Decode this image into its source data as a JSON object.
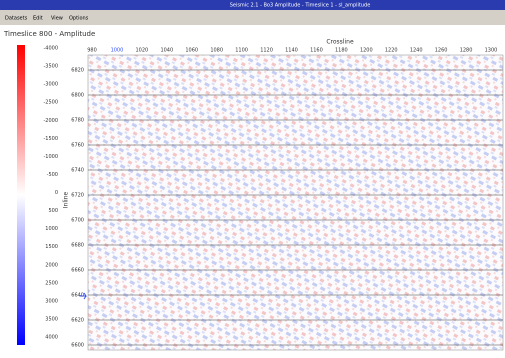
{
  "window": {
    "title": "Seismic 2.1 - Bo3 Amplitude - Timeslice 1 - sl_amplitude"
  },
  "menu": [
    "Datasets",
    "Edit",
    "View",
    "Options"
  ],
  "panel": {
    "title": "Timeslice 800 - Amplitude",
    "colorbar_labels": [
      "-4000",
      "-3500",
      "-3000",
      "-2500",
      "-2000",
      "-1500",
      "-1000",
      "-500",
      "0",
      "500",
      "1000",
      "1500",
      "2000",
      "2500",
      "3000",
      "3500",
      "4000"
    ],
    "x_axis": {
      "label": "Crossline",
      "ticks": [
        "980",
        "1000",
        "1020",
        "1040",
        "1060",
        "1080",
        "1100",
        "1120",
        "1140",
        "1160",
        "1180",
        "1200",
        "1220",
        "1240",
        "1260",
        "1280",
        "1300"
      ]
    },
    "y_axis": {
      "label": "Inline",
      "ticks": [
        "6820",
        "6800",
        "6780",
        "6760",
        "6740",
        "6720",
        "6700",
        "6680",
        "6660",
        "6640",
        "6620",
        "6600"
      ]
    }
  }
}
